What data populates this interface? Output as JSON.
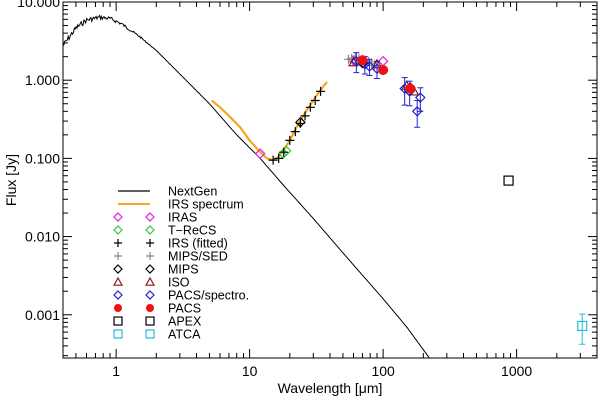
{
  "chart_data": {
    "type": "scatter",
    "xscale": "log",
    "yscale": "log",
    "xlabel": "Wavelength [μm]",
    "ylabel": "Flux [Jy]",
    "xlim": [
      0.4,
      4000
    ],
    "ylim": [
      0.00028,
      10
    ],
    "xticks": [
      {
        "value": 1,
        "label": "1"
      },
      {
        "value": 10,
        "label": "10"
      },
      {
        "value": 100,
        "label": "100"
      },
      {
        "value": 1000,
        "label": "1000"
      }
    ],
    "yticks": [
      {
        "value": 0.001,
        "label": "0.001"
      },
      {
        "value": 0.01,
        "label": "0.010"
      },
      {
        "value": 0.1,
        "label": "0.100"
      },
      {
        "value": 1,
        "label": "1.000"
      },
      {
        "value": 10,
        "label": "10.000"
      }
    ],
    "colors": {
      "nextgen": "#000000",
      "irs_spectrum": "#f5a623",
      "iras": "#dd22dd",
      "trecs": "#33cc33",
      "irs_fitted": "#000000",
      "mips_sed": "#888888",
      "mips": "#000000",
      "iso": "#8b1a1a",
      "pacs_spectro": "#2222cc",
      "pacs": "#ee1111",
      "apex": "#000000",
      "atca": "#22bbdd"
    },
    "legend": [
      {
        "key": "nextgen",
        "label": "NextGen",
        "marker": "line"
      },
      {
        "key": "irs_spectrum",
        "label": "IRS spectrum",
        "marker": "line"
      },
      {
        "key": "iras",
        "label": "IRAS",
        "marker": "diamond"
      },
      {
        "key": "trecs",
        "label": "T−ReCS",
        "marker": "diamond"
      },
      {
        "key": "irs_fitted",
        "label": "IRS (fitted)",
        "marker": "plus"
      },
      {
        "key": "mips_sed",
        "label": "MIPS/SED",
        "marker": "plus"
      },
      {
        "key": "mips",
        "label": "MIPS",
        "marker": "diamond"
      },
      {
        "key": "iso",
        "label": "ISO",
        "marker": "triangle"
      },
      {
        "key": "pacs_spectro",
        "label": "PACS/spectro.",
        "marker": "diamond"
      },
      {
        "key": "pacs",
        "label": "PACS",
        "marker": "filled-circle"
      },
      {
        "key": "apex",
        "label": "APEX",
        "marker": "square"
      },
      {
        "key": "atca",
        "label": "ATCA",
        "marker": "square"
      }
    ],
    "series": [
      {
        "name": "NextGen",
        "key": "nextgen",
        "kind": "model",
        "x": [
          0.4,
          0.5,
          0.6,
          0.75,
          0.9,
          1.1,
          1.5,
          2.0,
          3.0,
          5.0,
          8.0,
          12.0,
          18.0,
          30.0,
          50.0,
          100.0,
          150.0,
          222.0
        ],
        "y": [
          3.0,
          5.0,
          6.3,
          6.8,
          6.5,
          5.5,
          3.7,
          2.4,
          1.2,
          0.5,
          0.2,
          0.1,
          0.045,
          0.017,
          0.0062,
          0.0016,
          0.0007,
          0.00028
        ]
      },
      {
        "name": "IRS spectrum",
        "key": "irs_spectrum",
        "kind": "spectrum",
        "x": [
          5.2,
          6.0,
          7.0,
          8.5,
          10.0,
          12.0,
          13.5,
          15.0,
          16.0,
          17.5,
          20.0,
          23.0,
          27.0,
          31.0,
          35.0,
          38.0
        ],
        "y": [
          0.55,
          0.45,
          0.35,
          0.25,
          0.17,
          0.12,
          0.1,
          0.095,
          0.1,
          0.12,
          0.17,
          0.27,
          0.42,
          0.6,
          0.8,
          0.95
        ]
      },
      {
        "name": "IRAS",
        "key": "iras",
        "x": [
          12.0,
          60.0,
          100.0
        ],
        "y": [
          0.115,
          1.8,
          1.75
        ]
      },
      {
        "name": "T-ReCS",
        "key": "trecs",
        "x": [
          17.9,
          18.8
        ],
        "y": [
          0.115,
          0.125
        ]
      },
      {
        "name": "IRS (fitted)",
        "key": "irs_fitted",
        "x": [
          15.0,
          16.5,
          18.0,
          20.0,
          22.0,
          24.0,
          26.0,
          28.5,
          31.0,
          34.0
        ],
        "y": [
          0.095,
          0.1,
          0.12,
          0.17,
          0.22,
          0.28,
          0.35,
          0.45,
          0.55,
          0.72
        ]
      },
      {
        "name": "MIPS/SED",
        "key": "mips_sed",
        "x": [
          55.0,
          58.0,
          62.0,
          66.0,
          70.0,
          74.0,
          78.0,
          82.0,
          86.0,
          90.0
        ],
        "y": [
          1.85,
          1.9,
          1.95,
          1.9,
          1.85,
          1.8,
          1.75,
          1.65,
          1.55,
          1.45
        ]
      },
      {
        "name": "MIPS",
        "key": "mips",
        "x": [
          24.0,
          70.0,
          160.0
        ],
        "y": [
          0.29,
          1.65,
          0.8
        ]
      },
      {
        "name": "ISO",
        "key": "iso",
        "x": [
          60.0,
          90.0,
          150.0,
          170.0
        ],
        "y": [
          1.7,
          1.6,
          0.85,
          0.72
        ]
      },
      {
        "name": "PACS/spectro.",
        "key": "pacs_spectro",
        "x": [
          63.0,
          73.0,
          79.0,
          90.0,
          145.0,
          158.0,
          180.0,
          190.0
        ],
        "y": [
          1.75,
          1.6,
          1.5,
          1.4,
          0.78,
          0.72,
          0.4,
          0.6
        ],
        "err": [
          0.5,
          0.4,
          0.35,
          0.35,
          0.3,
          0.25,
          0.15,
          0.2
        ]
      },
      {
        "name": "PACS",
        "key": "pacs",
        "x": [
          70.0,
          100.0,
          160.0
        ],
        "y": [
          1.8,
          1.35,
          0.78
        ]
      },
      {
        "name": "APEX",
        "key": "apex",
        "x": [
          870.0
        ],
        "y": [
          0.052
        ]
      },
      {
        "name": "ATCA",
        "key": "atca",
        "x": [
          3100.0
        ],
        "y": [
          0.00072
        ],
        "err": [
          0.0003
        ]
      }
    ]
  }
}
